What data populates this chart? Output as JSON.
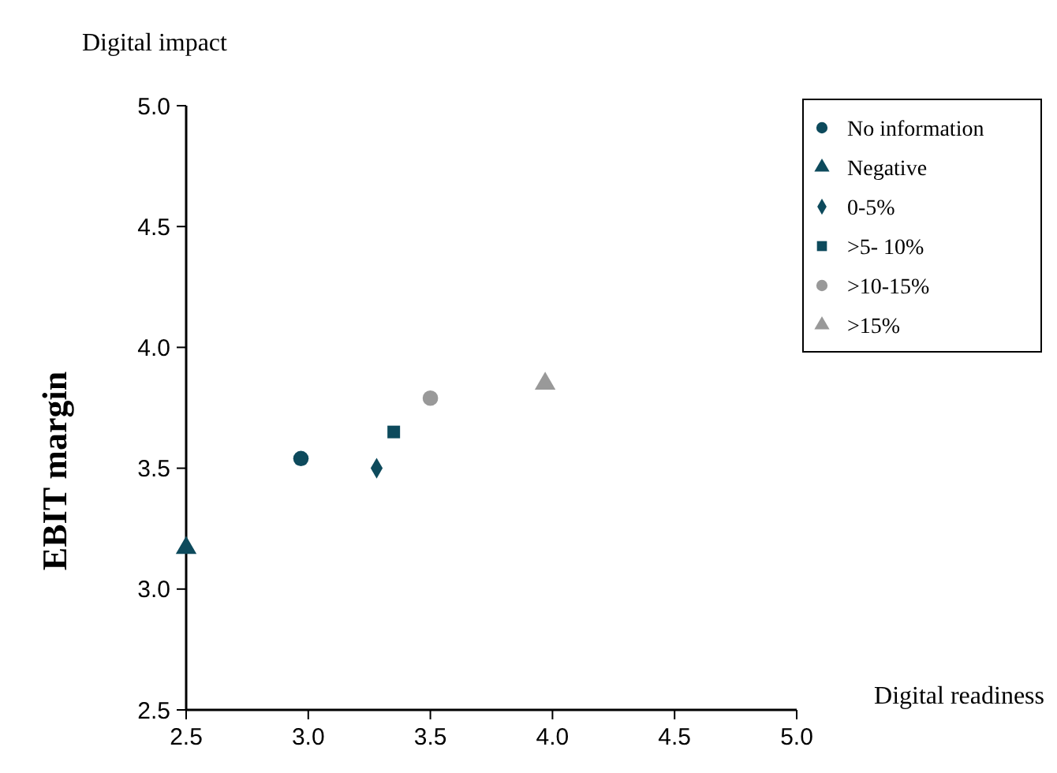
{
  "chart_data": {
    "type": "scatter",
    "title": "Digital impact",
    "xlabel": "Digital readiness",
    "ylabel": "EBIT margin",
    "xlim": [
      2.5,
      5.0
    ],
    "xticks": [
      {
        "value": 2.5,
        "label": "2.5"
      },
      {
        "value": 3,
        "label": "3.0"
      },
      {
        "value": 3.5,
        "label": "3.5"
      },
      {
        "value": 4,
        "label": "4.0"
      },
      {
        "value": 4.5,
        "label": "4.5"
      },
      {
        "value": 5,
        "label": "5.0"
      }
    ],
    "ylim": [
      2.5,
      5.0
    ],
    "yticks": [
      {
        "value": 2.5,
        "label": "2.5"
      },
      {
        "value": 3,
        "label": "3.0"
      },
      {
        "value": 3.5,
        "label": "3.5"
      },
      {
        "value": 4,
        "label": "4.0"
      },
      {
        "value": 4.5,
        "label": "4.5"
      },
      {
        "value": 5,
        "label": "5.0"
      }
    ],
    "grid": false,
    "legend": "right",
    "series": [
      {
        "name": "No information",
        "color": "#0d4a5c",
        "marker": "circle",
        "x": [
          2.97
        ],
        "values": [
          3.54
        ]
      },
      {
        "name": "Negative",
        "color": "#0d4a5c",
        "marker": "triangle",
        "x": [
          2.5
        ],
        "values": [
          3.17
        ]
      },
      {
        "name": "0-5%",
        "color": "#0d4a5c",
        "marker": "diamond",
        "x": [
          3.28
        ],
        "values": [
          3.5
        ]
      },
      {
        "name": ">5- 10%",
        "color": "#0d4a5c",
        "marker": "square",
        "x": [
          3.35
        ],
        "values": [
          3.65
        ]
      },
      {
        "name": ">10-15%",
        "color": "#999999",
        "marker": "circle",
        "x": [
          3.5
        ],
        "values": [
          3.79
        ]
      },
      {
        "name": ">15%",
        "color": "#999999",
        "marker": "triangle",
        "x": [
          3.97
        ],
        "values": [
          3.85
        ]
      }
    ]
  }
}
